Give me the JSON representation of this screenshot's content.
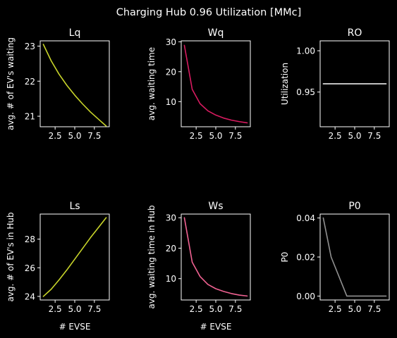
{
  "suptitle": "Charging Hub 0.96 Utilization [MMc]",
  "chart_data": [
    {
      "type": "line",
      "title": "Lq",
      "xlabel": "",
      "ylabel": "avg. # of EV's waiting",
      "color": "#c8d42a",
      "x": [
        1,
        2,
        3,
        4,
        5,
        6,
        7,
        8,
        9
      ],
      "y": [
        23.05,
        22.58,
        22.2,
        21.88,
        21.6,
        21.35,
        21.12,
        20.92,
        20.72
      ],
      "xlim": [
        0.6,
        9.4
      ],
      "ylim": [
        20.7,
        23.15
      ],
      "xticks": [
        2.5,
        5.0,
        7.5
      ],
      "xticklabels": [
        "2.5",
        "5.0",
        "7.5"
      ],
      "yticks": [
        21,
        22,
        23
      ],
      "yticklabels": [
        "21",
        "22",
        "23"
      ]
    },
    {
      "type": "line",
      "title": "Wq",
      "xlabel": "",
      "ylabel": "avg. waiting time",
      "color": "#d81b60",
      "x": [
        1,
        2,
        3,
        4,
        5,
        6,
        7,
        8,
        9
      ],
      "y": [
        28.8,
        14.1,
        9.3,
        6.9,
        5.5,
        4.5,
        3.8,
        3.3,
        2.9
      ],
      "xlim": [
        0.6,
        9.4
      ],
      "ylim": [
        1.6,
        30.3
      ],
      "xticks": [
        2.5,
        5.0,
        7.5
      ],
      "xticklabels": [
        "2.5",
        "5.0",
        "7.5"
      ],
      "yticks": [
        10,
        20,
        30
      ],
      "yticklabels": [
        "10",
        "20",
        "30"
      ]
    },
    {
      "type": "line",
      "title": "RO",
      "xlabel": "",
      "ylabel": "Utilization",
      "color": "#ffffff",
      "x": [
        1,
        2,
        3,
        4,
        5,
        6,
        7,
        8,
        9
      ],
      "y": [
        0.96,
        0.96,
        0.96,
        0.96,
        0.96,
        0.96,
        0.96,
        0.96,
        0.96
      ],
      "xlim": [
        0.6,
        9.4
      ],
      "ylim": [
        0.908,
        1.012
      ],
      "xticks": [
        2.5,
        5.0,
        7.5
      ],
      "xticklabels": [
        "2.5",
        "5.0",
        "7.5"
      ],
      "yticks": [
        0.95,
        1.0
      ],
      "yticklabels": [
        "0.95",
        "1.00"
      ]
    },
    {
      "type": "line",
      "title": "Ls",
      "xlabel": "# EVSE",
      "ylabel": "avg. # of EV's in Hub",
      "color": "#c8d42a",
      "x": [
        1,
        2,
        3,
        4,
        5,
        6,
        7,
        8,
        9
      ],
      "y": [
        24.0,
        24.5,
        25.15,
        25.85,
        26.6,
        27.35,
        28.1,
        28.8,
        29.5
      ],
      "xlim": [
        0.6,
        9.4
      ],
      "ylim": [
        23.75,
        29.75
      ],
      "xticks": [
        2.5,
        5.0,
        7.5
      ],
      "xticklabels": [
        "2.5",
        "5.0",
        "7.5"
      ],
      "yticks": [
        24,
        26,
        28
      ],
      "yticklabels": [
        "24",
        "26",
        "28"
      ]
    },
    {
      "type": "line",
      "title": "Ws",
      "xlabel": "# EVSE",
      "ylabel": "avg. waiting time in Hub",
      "color": "#f06292",
      "x": [
        1,
        2,
        3,
        4,
        5,
        6,
        7,
        8,
        9
      ],
      "y": [
        30.0,
        15.4,
        10.7,
        8.1,
        6.7,
        5.8,
        5.1,
        4.6,
        4.3
      ],
      "xlim": [
        0.6,
        9.4
      ],
      "ylim": [
        3.0,
        31.2
      ],
      "xticks": [
        2.5,
        5.0,
        7.5
      ],
      "xticklabels": [
        "2.5",
        "5.0",
        "7.5"
      ],
      "yticks": [
        10,
        20,
        30
      ],
      "yticklabels": [
        "10",
        "20",
        "30"
      ]
    },
    {
      "type": "line",
      "title": "P0",
      "xlabel": "",
      "ylabel": "P0",
      "color": "#909090",
      "x": [
        1,
        2,
        3,
        4,
        5,
        6,
        7,
        8,
        9
      ],
      "y": [
        0.04,
        0.02,
        0.01,
        0.0,
        0.0,
        0.0,
        0.0,
        0.0,
        0.0
      ],
      "xlim": [
        0.6,
        9.4
      ],
      "ylim": [
        -0.002,
        0.042
      ],
      "xticks": [
        2.5,
        5.0,
        7.5
      ],
      "xticklabels": [
        "2.5",
        "5.0",
        "7.5"
      ],
      "yticks": [
        0.0,
        0.02,
        0.04
      ],
      "yticklabels": [
        "0.00",
        "0.02",
        "0.04"
      ]
    }
  ]
}
